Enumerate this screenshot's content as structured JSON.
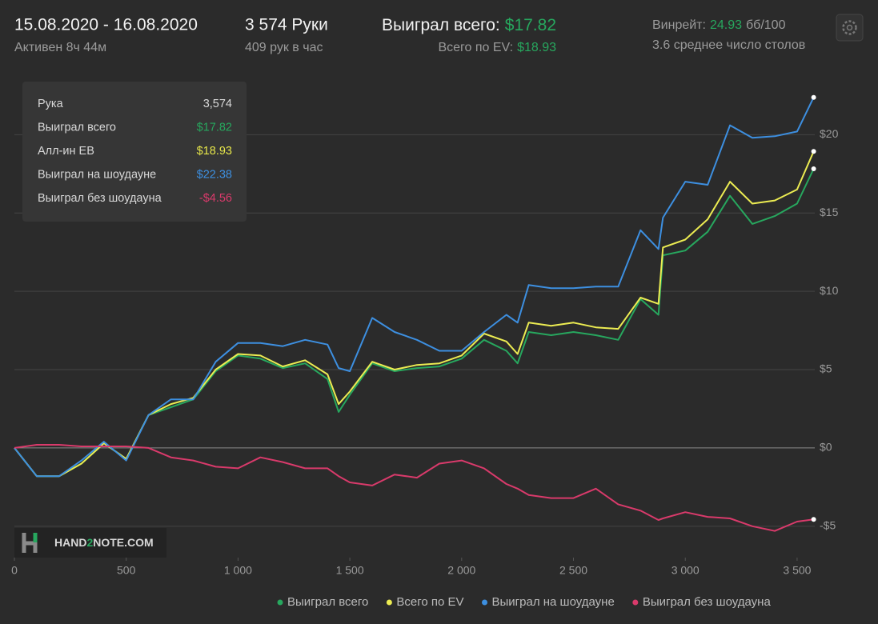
{
  "header": {
    "dates": "15.08.2020 - 16.08.2020",
    "active": "Активен 8ч 44м",
    "hands": "3 574 Руки",
    "hands_per_hour": "409 рук в час",
    "won_label": "Выиграл всего:",
    "won_value": "$17.82",
    "ev_label": "Всего по EV:",
    "ev_value": "$18.93",
    "winrate_label": "Винрейт:",
    "winrate_value": "24.93",
    "winrate_unit": "бб/100",
    "tables": "3.6 среднее число столов"
  },
  "tooltip": {
    "rows": [
      {
        "label": "Рука",
        "value": "3,574",
        "color": "#d8d8d8"
      },
      {
        "label": "Выиграл всего",
        "value": "$17.82",
        "color": "#27a75e"
      },
      {
        "label": "Алл-ин ЕВ",
        "value": "$18.93",
        "color": "#e6e64a"
      },
      {
        "label": "Выиграл на шоудауне",
        "value": "$22.38",
        "color": "#3d8fe0"
      },
      {
        "label": "Выиграл без шоудауна",
        "value": "-$4.56",
        "color": "#d93a6b"
      }
    ]
  },
  "logo": {
    "part1": "HAND",
    "part2": "2",
    "part3": "NOTE.COM"
  },
  "chart_data": {
    "type": "line",
    "x": [
      0,
      100,
      200,
      300,
      400,
      500,
      600,
      700,
      800,
      900,
      1000,
      1100,
      1200,
      1300,
      1400,
      1450,
      1500,
      1600,
      1700,
      1800,
      1900,
      2000,
      2100,
      2200,
      2250,
      2300,
      2400,
      2500,
      2600,
      2700,
      2800,
      2880,
      2900,
      3000,
      3100,
      3200,
      3300,
      3400,
      3500,
      3574
    ],
    "series": [
      {
        "name": "Выиграл всего",
        "color": "#27a75e",
        "values": [
          0,
          -1.8,
          -1.8,
          -1.0,
          0.3,
          -0.7,
          2.1,
          2.6,
          3.1,
          4.9,
          5.9,
          5.7,
          5.1,
          5.4,
          4.4,
          2.3,
          3.4,
          5.4,
          4.9,
          5.1,
          5.2,
          5.7,
          6.9,
          6.2,
          5.4,
          7.4,
          7.2,
          7.4,
          7.2,
          6.9,
          9.5,
          8.5,
          12.3,
          12.6,
          13.8,
          16.1,
          14.3,
          14.8,
          15.6,
          17.82
        ]
      },
      {
        "name": "Всего по EV",
        "color": "#ecec52",
        "values": [
          0,
          -1.8,
          -1.8,
          -1.0,
          0.3,
          -0.7,
          2.1,
          2.8,
          3.2,
          5.0,
          6.0,
          5.9,
          5.2,
          5.6,
          4.7,
          2.8,
          3.6,
          5.5,
          5.0,
          5.3,
          5.4,
          5.9,
          7.3,
          6.8,
          6.0,
          8.0,
          7.8,
          8.0,
          7.7,
          7.6,
          9.6,
          9.2,
          12.8,
          13.3,
          14.6,
          17.0,
          15.6,
          15.8,
          16.5,
          18.93
        ]
      },
      {
        "name": "Выиграл на шоудауне",
        "color": "#3d8fe0",
        "values": [
          0,
          -1.8,
          -1.8,
          -0.8,
          0.4,
          -0.8,
          2.1,
          3.1,
          3.1,
          5.5,
          6.7,
          6.7,
          6.5,
          6.9,
          6.6,
          5.1,
          4.9,
          8.3,
          7.4,
          6.9,
          6.2,
          6.2,
          7.4,
          8.5,
          8.0,
          10.4,
          10.2,
          10.2,
          10.3,
          10.3,
          13.9,
          12.7,
          14.7,
          17.0,
          16.8,
          20.6,
          19.8,
          19.9,
          20.2,
          22.38
        ]
      },
      {
        "name": "Выиграл без шоудауна",
        "color": "#d93a6b",
        "values": [
          0,
          0.2,
          0.2,
          0.1,
          0.1,
          0.1,
          0.0,
          -0.6,
          -0.8,
          -1.2,
          -1.3,
          -0.6,
          -0.9,
          -1.3,
          -1.3,
          -1.8,
          -2.2,
          -2.4,
          -1.7,
          -1.9,
          -1.0,
          -0.8,
          -1.3,
          -2.3,
          -2.6,
          -3.0,
          -3.2,
          -3.2,
          -2.6,
          -3.6,
          -4.0,
          -4.6,
          -4.5,
          -4.1,
          -4.4,
          -4.5,
          -5.0,
          -5.3,
          -4.7,
          -4.56
        ]
      }
    ],
    "xlim": [
      0,
      3574
    ],
    "xticks": [
      0,
      500,
      {
        "value": 1000,
        "label": "1 000"
      },
      {
        "value": 1500,
        "label": "1 500"
      },
      {
        "value": 2000,
        "label": "2 000"
      },
      {
        "value": 2500,
        "label": "2 500"
      },
      {
        "value": 3000,
        "label": "3 000"
      },
      {
        "value": 3500,
        "label": "3 500"
      }
    ],
    "ylim": [
      -7,
      24
    ],
    "yticks": [
      {
        "value": -5,
        "label": "-$5"
      },
      {
        "value": 0,
        "label": "$0"
      },
      {
        "value": 5,
        "label": "$5"
      },
      {
        "value": 10,
        "label": "$10"
      },
      {
        "value": 15,
        "label": "$15"
      },
      {
        "value": 20,
        "label": "$20"
      }
    ],
    "grid": true
  }
}
